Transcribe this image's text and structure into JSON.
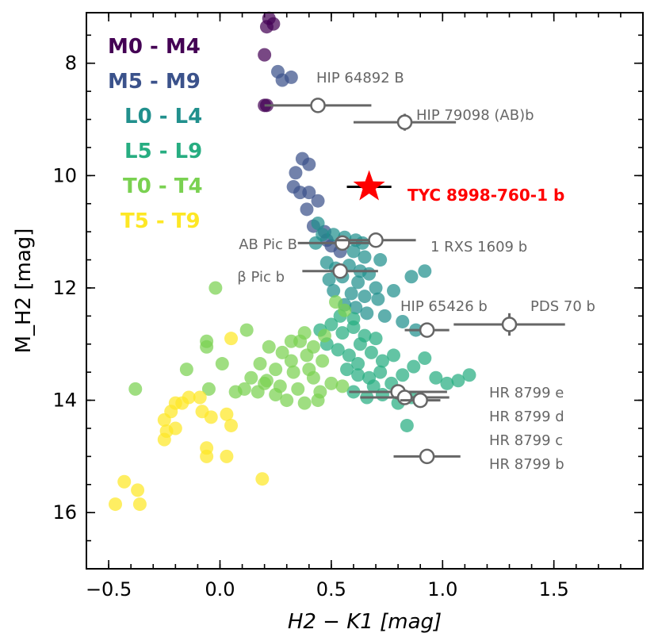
{
  "chart_data": {
    "type": "scatter",
    "title": "",
    "xlabel": "H2 − K1 [mag]",
    "ylabel": "M_H2 [mag]",
    "xlim": [
      -0.6,
      1.9
    ],
    "ylim": [
      17.0,
      7.1
    ],
    "y_inverted": true,
    "x_ticks": [
      -0.5,
      0.0,
      0.5,
      1.0,
      1.5
    ],
    "x_tick_labels": [
      "−0.5",
      "0.0",
      "0.5",
      "1.0",
      "1.5"
    ],
    "y_ticks": [
      8,
      10,
      12,
      14,
      16
    ],
    "y_tick_labels": [
      "8",
      "10",
      "12",
      "14",
      "16"
    ],
    "grid": false,
    "legend_placement": "top-left",
    "legend": [
      {
        "label": "M0 - M4",
        "color": "#440154"
      },
      {
        "label": "M5 - M9",
        "color": "#3b528b"
      },
      {
        "label": "L0 - L4",
        "color": "#21908d"
      },
      {
        "label": "L5 - L9",
        "color": "#27ad81"
      },
      {
        "label": "T0 - T4",
        "color": "#7ad151"
      },
      {
        "label": "T5 - T9",
        "color": "#fde725"
      }
    ],
    "series": [
      {
        "name": "M0 - M4",
        "color": "#440154",
        "points": [
          [
            0.22,
            7.2
          ],
          [
            0.24,
            7.3
          ],
          [
            0.21,
            7.35
          ],
          [
            0.2,
            7.85
          ],
          [
            0.2,
            8.75
          ],
          [
            0.21,
            8.75
          ]
        ]
      },
      {
        "name": "M5 - M9",
        "color": "#3b528b",
        "points": [
          [
            0.26,
            8.15
          ],
          [
            0.28,
            8.3
          ],
          [
            0.32,
            8.25
          ],
          [
            0.37,
            9.7
          ],
          [
            0.4,
            9.8
          ],
          [
            0.34,
            9.95
          ],
          [
            0.33,
            10.2
          ],
          [
            0.36,
            10.3
          ],
          [
            0.4,
            10.3
          ],
          [
            0.44,
            10.45
          ],
          [
            0.39,
            10.6
          ],
          [
            0.42,
            10.9
          ],
          [
            0.47,
            11.0
          ],
          [
            0.48,
            11.15
          ],
          [
            0.5,
            11.25
          ],
          [
            0.54,
            11.35
          ]
        ]
      },
      {
        "name": "L0 - L4",
        "color": "#21908d",
        "points": [
          [
            0.44,
            10.85
          ],
          [
            0.46,
            11.05
          ],
          [
            0.43,
            11.2
          ],
          [
            0.51,
            11.05
          ],
          [
            0.56,
            11.1
          ],
          [
            0.61,
            11.15
          ],
          [
            0.64,
            11.2
          ],
          [
            0.6,
            11.35
          ],
          [
            0.65,
            11.45
          ],
          [
            0.72,
            11.5
          ],
          [
            0.48,
            11.55
          ],
          [
            0.52,
            11.65
          ],
          [
            0.58,
            11.6
          ],
          [
            0.63,
            11.7
          ],
          [
            0.67,
            11.75
          ],
          [
            0.49,
            11.85
          ],
          [
            0.55,
            11.8
          ],
          [
            0.62,
            11.9
          ],
          [
            0.7,
            12.0
          ],
          [
            0.51,
            12.05
          ],
          [
            0.59,
            12.1
          ],
          [
            0.65,
            12.15
          ],
          [
            0.71,
            12.2
          ],
          [
            0.56,
            12.3
          ],
          [
            0.61,
            12.35
          ],
          [
            0.66,
            12.45
          ],
          [
            0.74,
            12.5
          ],
          [
            0.86,
            11.8
          ],
          [
            0.92,
            11.7
          ],
          [
            0.78,
            12.05
          ],
          [
            0.82,
            12.6
          ],
          [
            0.88,
            12.75
          ]
        ]
      },
      {
        "name": "L5 - L9",
        "color": "#27ad81",
        "points": [
          [
            0.5,
            12.65
          ],
          [
            0.55,
            12.8
          ],
          [
            0.6,
            12.7
          ],
          [
            0.65,
            12.85
          ],
          [
            0.7,
            12.9
          ],
          [
            0.48,
            13.0
          ],
          [
            0.53,
            13.1
          ],
          [
            0.58,
            13.2
          ],
          [
            0.63,
            13.0
          ],
          [
            0.68,
            13.15
          ],
          [
            0.73,
            13.3
          ],
          [
            0.78,
            13.2
          ],
          [
            0.57,
            13.45
          ],
          [
            0.62,
            13.55
          ],
          [
            0.67,
            13.6
          ],
          [
            0.72,
            13.5
          ],
          [
            0.77,
            13.7
          ],
          [
            0.82,
            13.55
          ],
          [
            0.87,
            13.4
          ],
          [
            0.92,
            13.25
          ],
          [
            0.97,
            13.6
          ],
          [
            1.02,
            13.7
          ],
          [
            1.07,
            13.65
          ],
          [
            1.12,
            13.55
          ],
          [
            0.6,
            13.85
          ],
          [
            0.66,
            13.95
          ],
          [
            0.73,
            13.9
          ],
          [
            0.8,
            14.05
          ],
          [
            0.86,
            13.95
          ],
          [
            0.84,
            14.45
          ],
          [
            0.54,
            12.5
          ],
          [
            0.6,
            12.55
          ],
          [
            0.45,
            12.75
          ],
          [
            0.62,
            13.35
          ],
          [
            0.69,
            13.75
          ]
        ]
      },
      {
        "name": "T0 - T4",
        "color": "#7ad151",
        "points": [
          [
            -0.02,
            12.0
          ],
          [
            0.52,
            12.25
          ],
          [
            0.56,
            12.4
          ],
          [
            0.38,
            12.8
          ],
          [
            0.47,
            12.85
          ],
          [
            0.42,
            13.05
          ],
          [
            0.12,
            12.75
          ],
          [
            0.32,
            12.95
          ],
          [
            0.36,
            12.95
          ],
          [
            0.22,
            13.05
          ],
          [
            0.28,
            13.15
          ],
          [
            0.39,
            13.2
          ],
          [
            0.46,
            13.3
          ],
          [
            0.18,
            13.35
          ],
          [
            0.25,
            13.45
          ],
          [
            0.33,
            13.5
          ],
          [
            0.42,
            13.6
          ],
          [
            0.5,
            13.7
          ],
          [
            0.55,
            13.75
          ],
          [
            0.14,
            13.6
          ],
          [
            0.2,
            13.7
          ],
          [
            0.27,
            13.75
          ],
          [
            0.35,
            13.8
          ],
          [
            0.45,
            13.85
          ],
          [
            0.11,
            13.8
          ],
          [
            0.17,
            13.85
          ],
          [
            0.25,
            13.9
          ],
          [
            0.3,
            14.0
          ],
          [
            0.38,
            14.05
          ],
          [
            0.44,
            14.0
          ],
          [
            0.07,
            13.85
          ],
          [
            -0.15,
            13.45
          ],
          [
            -0.06,
            13.05
          ],
          [
            -0.05,
            13.8
          ],
          [
            0.01,
            13.35
          ],
          [
            -0.38,
            13.8
          ],
          [
            -0.06,
            12.95
          ],
          [
            0.21,
            13.65
          ],
          [
            0.32,
            13.3
          ],
          [
            0.4,
            13.45
          ]
        ]
      },
      {
        "name": "T5 - T9",
        "color": "#fde725",
        "points": [
          [
            0.05,
            12.9
          ],
          [
            -0.09,
            13.95
          ],
          [
            -0.14,
            13.95
          ],
          [
            -0.17,
            14.05
          ],
          [
            -0.22,
            14.2
          ],
          [
            -0.2,
            14.05
          ],
          [
            -0.25,
            14.35
          ],
          [
            -0.24,
            14.55
          ],
          [
            -0.2,
            14.5
          ],
          [
            -0.25,
            14.7
          ],
          [
            -0.08,
            14.2
          ],
          [
            -0.04,
            14.3
          ],
          [
            0.03,
            14.25
          ],
          [
            0.05,
            14.45
          ],
          [
            -0.06,
            14.85
          ],
          [
            -0.06,
            15.0
          ],
          [
            0.03,
            15.0
          ],
          [
            0.19,
            15.4
          ],
          [
            -0.43,
            15.45
          ],
          [
            -0.37,
            15.6
          ],
          [
            -0.47,
            15.85
          ],
          [
            -0.36,
            15.85
          ]
        ]
      }
    ],
    "target": {
      "name": "TYC 8998-760-1 b",
      "x": 0.67,
      "y": 10.2,
      "xerr": 0.1,
      "color": "#ff0000",
      "label_color": "#ff0000"
    },
    "companions": [
      {
        "name": "HIP 64892 B",
        "x": 0.44,
        "y": 8.75,
        "xerr_minus": 0.24,
        "xerr_plus": 0.24,
        "yerr": 0.12
      },
      {
        "name": "HIP 79098 (AB)b",
        "x": 0.83,
        "y": 9.05,
        "xerr_minus": 0.23,
        "xerr_plus": 0.23,
        "yerr": 0.15
      },
      {
        "name": "AB Pic B",
        "x": 0.55,
        "y": 11.2,
        "xerr_minus": 0.2,
        "xerr_plus": 0.15,
        "yerr": 0.05
      },
      {
        "name": "1 RXS 1609 b",
        "x": 0.7,
        "y": 11.15,
        "xerr_minus": 0.18,
        "xerr_plus": 0.18,
        "yerr": 0.08
      },
      {
        "name": "β Pic b",
        "x": 0.54,
        "y": 11.7,
        "xerr_minus": 0.17,
        "xerr_plus": 0.17,
        "yerr": 0.05
      },
      {
        "name": "HIP 65426 b",
        "x": 0.93,
        "y": 12.75,
        "xerr_minus": 0.1,
        "xerr_plus": 0.1,
        "yerr": 0.1
      },
      {
        "name": "PDS 70 b",
        "x": 1.3,
        "y": 12.65,
        "xerr_minus": 0.25,
        "xerr_plus": 0.25,
        "yerr": 0.2
      },
      {
        "name": "HR 8799 e",
        "x": 0.8,
        "y": 13.85,
        "xerr_minus": 0.22,
        "xerr_plus": 0.22,
        "yerr": 0.1
      },
      {
        "name": "HR 8799 d",
        "x": 0.83,
        "y": 13.95,
        "xerr_minus": 0.2,
        "xerr_plus": 0.2,
        "yerr": 0.08
      },
      {
        "name": "HR 8799 c",
        "x": 0.9,
        "y": 14.0,
        "xerr_minus": 0.09,
        "xerr_plus": 0.09,
        "yerr": 0.08
      },
      {
        "name": "HR 8799 b",
        "x": 0.93,
        "y": 15.0,
        "xerr_minus": 0.15,
        "xerr_plus": 0.15,
        "yerr": 0.05
      }
    ]
  }
}
